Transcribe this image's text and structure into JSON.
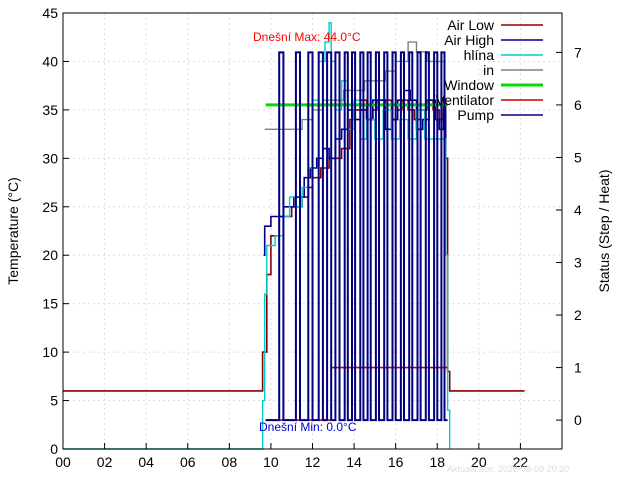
{
  "chart_data": {
    "type": "line",
    "xlabel": "",
    "ylabel": "Temperature (°C)",
    "y2label": "Status (Step / Heat)",
    "xlim": [
      0,
      24
    ],
    "ylim": [
      0,
      45
    ],
    "y2lim": [
      -0.55,
      7.75
    ],
    "x_ticks": [
      "00",
      "02",
      "04",
      "06",
      "08",
      "10",
      "12",
      "14",
      "16",
      "18",
      "20",
      "22"
    ],
    "x_tick_values": [
      0,
      2,
      4,
      6,
      8,
      10,
      12,
      14,
      16,
      18,
      20,
      22
    ],
    "y_ticks": [
      0,
      5,
      10,
      15,
      20,
      25,
      30,
      35,
      40,
      45
    ],
    "y2_ticks": [
      0,
      1,
      2,
      3,
      4,
      5,
      6,
      7
    ],
    "grid": true,
    "legend_position": "top-right",
    "annotations": {
      "max_label": "Dnešní Max: 44.0°C",
      "min_label": "Dnešní Min: 0.0°C",
      "updated": "Aktualizace: 2026-08-09 20:20"
    },
    "colors": {
      "air_low": "#8b0000",
      "air_high": "#00008b",
      "hlina": "#00cccc",
      "in": "#808080",
      "window": "#00dd00",
      "ventilator": "#cc0000",
      "pump": "#000080",
      "max_label": "#ff0000",
      "min_label": "#0000cc",
      "updated": "#dddddd"
    },
    "series": [
      {
        "key": "air_low",
        "name": "Air Low",
        "axis": "y1",
        "style": "step",
        "points": [
          [
            0,
            6
          ],
          [
            9.6,
            6
          ],
          [
            9.6,
            10
          ],
          [
            9.8,
            18
          ],
          [
            10,
            22
          ],
          [
            10.4,
            24
          ],
          [
            10.8,
            24
          ],
          [
            11,
            25
          ],
          [
            11.5,
            26
          ],
          [
            11.8,
            27
          ],
          [
            12,
            28
          ],
          [
            12.4,
            29
          ],
          [
            12.8,
            30
          ],
          [
            13,
            30
          ],
          [
            13.4,
            31
          ],
          [
            13.8,
            34
          ],
          [
            14,
            35
          ],
          [
            14.3,
            36
          ],
          [
            14.6,
            34
          ],
          [
            14.9,
            35
          ],
          [
            15.1,
            36
          ],
          [
            15.5,
            36
          ],
          [
            15.8,
            34
          ],
          [
            16,
            35
          ],
          [
            16.3,
            36
          ],
          [
            16.6,
            35
          ],
          [
            16.9,
            34
          ],
          [
            17.2,
            35
          ],
          [
            17.5,
            36
          ],
          [
            17.8,
            35
          ],
          [
            18.1,
            34
          ],
          [
            18.3,
            36
          ],
          [
            18.4,
            30
          ],
          [
            18.5,
            8
          ],
          [
            18.6,
            6
          ],
          [
            22.2,
            6
          ]
        ]
      },
      {
        "key": "air_high",
        "name": "Air High",
        "axis": "y1",
        "style": "step",
        "points": [
          [
            9.65,
            20
          ],
          [
            9.7,
            23
          ],
          [
            10.0,
            24
          ],
          [
            10.6,
            25
          ],
          [
            10.9,
            25
          ],
          [
            11.1,
            26
          ],
          [
            11.6,
            28
          ],
          [
            11.9,
            29
          ],
          [
            12.2,
            30
          ],
          [
            12.5,
            31
          ],
          [
            12.8,
            30
          ],
          [
            13.1,
            32
          ],
          [
            13.4,
            33
          ],
          [
            13.7,
            35
          ],
          [
            14,
            34
          ],
          [
            14.3,
            35
          ],
          [
            14.6,
            34
          ],
          [
            14.9,
            36
          ],
          [
            15.2,
            36
          ],
          [
            15.5,
            33
          ],
          [
            15.8,
            34
          ],
          [
            16.1,
            36
          ],
          [
            16.4,
            37
          ],
          [
            16.7,
            36
          ],
          [
            17,
            33
          ],
          [
            17.3,
            34
          ],
          [
            17.6,
            36
          ],
          [
            17.9,
            34
          ],
          [
            18.1,
            33
          ],
          [
            18.3,
            35
          ],
          [
            18.4,
            30
          ]
        ]
      },
      {
        "key": "hlina",
        "name": "hlína",
        "axis": "y1",
        "style": "step",
        "points": [
          [
            0,
            0
          ],
          [
            9.6,
            0
          ],
          [
            9.6,
            5
          ],
          [
            9.7,
            16
          ],
          [
            9.8,
            21
          ],
          [
            10.2,
            22
          ],
          [
            10.6,
            24
          ],
          [
            10.9,
            26
          ],
          [
            11.2,
            25
          ],
          [
            11.5,
            27
          ],
          [
            11.8,
            29
          ],
          [
            12,
            36
          ],
          [
            12.3,
            40
          ],
          [
            12.6,
            42
          ],
          [
            12.8,
            44
          ],
          [
            12.9,
            40
          ],
          [
            13.1,
            35
          ],
          [
            13.4,
            38
          ],
          [
            13.7,
            33
          ],
          [
            14,
            36
          ],
          [
            14.3,
            32
          ],
          [
            14.6,
            34
          ],
          [
            15,
            32
          ],
          [
            15.4,
            35
          ],
          [
            15.8,
            32
          ],
          [
            16.2,
            34
          ],
          [
            16.6,
            32
          ],
          [
            17,
            35
          ],
          [
            17.4,
            32
          ],
          [
            17.8,
            32
          ],
          [
            18.3,
            32
          ],
          [
            18.4,
            20
          ],
          [
            18.5,
            4
          ],
          [
            18.6,
            0
          ]
        ]
      },
      {
        "key": "in",
        "name": "in",
        "axis": "y1",
        "style": "step",
        "points": [
          [
            9.7,
            33
          ],
          [
            11.5,
            34
          ],
          [
            12.0,
            35
          ],
          [
            12.5,
            36
          ],
          [
            13.5,
            37
          ],
          [
            14.5,
            38
          ],
          [
            15.5,
            39
          ],
          [
            16.0,
            40
          ],
          [
            16.6,
            42
          ],
          [
            17.0,
            41
          ],
          [
            17.5,
            40
          ],
          [
            18.4,
            40
          ]
        ]
      },
      {
        "key": "window",
        "name": "Window",
        "axis": "y2",
        "style": "line",
        "points": [
          [
            9.75,
            6
          ],
          [
            18.5,
            6
          ]
        ]
      },
      {
        "key": "ventilator",
        "name": "Ventilator",
        "axis": "y2",
        "style": "step",
        "points": [
          [
            9.75,
            0
          ],
          [
            12.9,
            0
          ],
          [
            12.9,
            1
          ],
          [
            18.5,
            1
          ]
        ]
      },
      {
        "key": "pump",
        "name": "Pump",
        "axis": "y2",
        "style": "step",
        "points": [
          [
            9.75,
            0
          ],
          [
            10.4,
            0
          ],
          [
            10.4,
            7
          ],
          [
            10.6,
            7
          ],
          [
            10.6,
            0
          ],
          [
            11.2,
            0
          ],
          [
            11.2,
            7
          ],
          [
            11.4,
            7
          ],
          [
            11.4,
            0
          ],
          [
            11.8,
            0
          ],
          [
            11.8,
            7
          ],
          [
            12.0,
            7
          ],
          [
            12.0,
            0
          ],
          [
            12.3,
            0
          ],
          [
            12.3,
            7
          ],
          [
            12.5,
            7
          ],
          [
            12.5,
            0
          ],
          [
            12.7,
            0
          ],
          [
            12.7,
            7
          ],
          [
            12.9,
            7
          ],
          [
            12.9,
            0
          ],
          [
            13.1,
            0
          ],
          [
            13.1,
            7
          ],
          [
            13.3,
            7
          ],
          [
            13.3,
            0
          ],
          [
            13.55,
            0
          ],
          [
            13.55,
            7
          ],
          [
            13.7,
            7
          ],
          [
            13.7,
            0
          ],
          [
            13.9,
            0
          ],
          [
            13.9,
            7
          ],
          [
            14.05,
            7
          ],
          [
            14.05,
            0
          ],
          [
            14.3,
            0
          ],
          [
            14.3,
            7
          ],
          [
            14.45,
            7
          ],
          [
            14.45,
            0
          ],
          [
            14.65,
            0
          ],
          [
            14.65,
            7
          ],
          [
            14.8,
            7
          ],
          [
            14.8,
            0
          ],
          [
            15.05,
            0
          ],
          [
            15.05,
            7
          ],
          [
            15.2,
            7
          ],
          [
            15.2,
            0
          ],
          [
            15.45,
            0
          ],
          [
            15.45,
            7
          ],
          [
            15.6,
            7
          ],
          [
            15.6,
            0
          ],
          [
            15.85,
            0
          ],
          [
            15.85,
            7
          ],
          [
            16.0,
            7
          ],
          [
            16.0,
            0
          ],
          [
            16.25,
            0
          ],
          [
            16.25,
            7
          ],
          [
            16.4,
            7
          ],
          [
            16.4,
            0
          ],
          [
            16.65,
            0
          ],
          [
            16.65,
            7
          ],
          [
            16.8,
            7
          ],
          [
            16.8,
            0
          ],
          [
            17.05,
            0
          ],
          [
            17.05,
            7
          ],
          [
            17.2,
            7
          ],
          [
            17.2,
            0
          ],
          [
            17.45,
            0
          ],
          [
            17.45,
            7
          ],
          [
            17.6,
            7
          ],
          [
            17.6,
            0
          ],
          [
            17.85,
            0
          ],
          [
            17.85,
            7
          ],
          [
            18.0,
            7
          ],
          [
            18.0,
            0
          ],
          [
            18.2,
            0
          ],
          [
            18.2,
            7
          ],
          [
            18.35,
            7
          ],
          [
            18.35,
            0
          ],
          [
            18.5,
            0
          ]
        ]
      }
    ]
  }
}
